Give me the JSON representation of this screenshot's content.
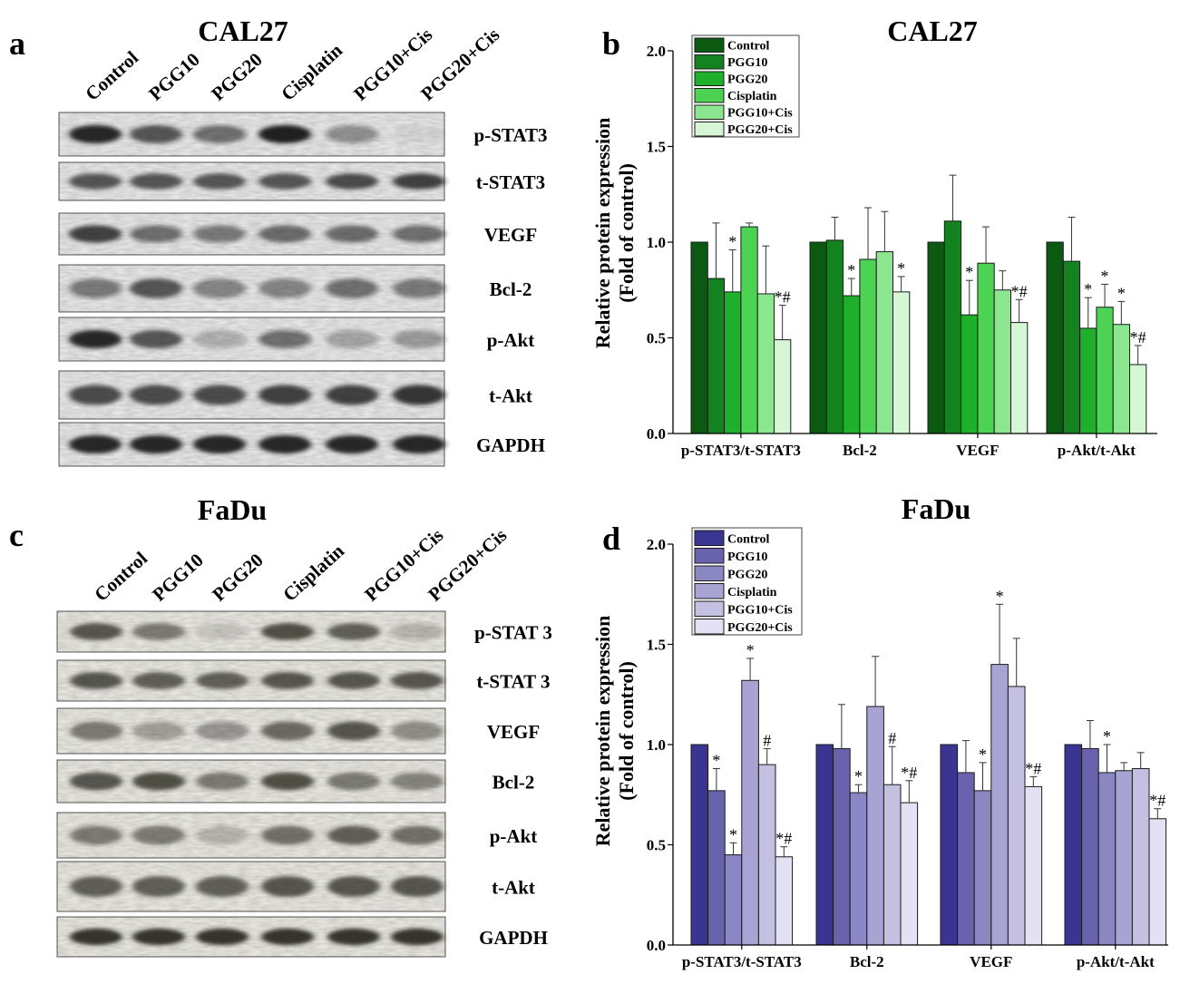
{
  "panels": {
    "a": {
      "letter": "a",
      "title": "CAL27",
      "lanes": [
        "Control",
        "PGG10",
        "PGG20",
        "Cisplatin",
        "PGG10+Cis",
        "PGG20+Cis"
      ],
      "blots": [
        "p-STAT3",
        "t-STAT3",
        "VEGF",
        "Bcl-2",
        "p-Akt",
        "t-Akt",
        "GAPDH"
      ]
    },
    "c": {
      "letter": "c",
      "title": "FaDu",
      "lanes": [
        "Control",
        "PGG10",
        "PGG20",
        "Cisplatin",
        "PGG10+Cis",
        "PGG20+Cis"
      ],
      "blots": [
        "p-STAT 3",
        "t-STAT 3",
        "VEGF",
        "Bcl-2",
        "p-Akt",
        "t-Akt",
        "GAPDH"
      ]
    }
  },
  "chart_data": [
    {
      "panel": "b",
      "type": "bar",
      "title": "CAL27",
      "ylabel": "Relative protein expression (Fold of control)",
      "ylabel_lines": [
        "Relative protein expression",
        "(Fold of control)"
      ],
      "ylim": [
        0.0,
        2.0
      ],
      "yticks": [
        "0.0",
        "0.5",
        "1.0",
        "1.5",
        "2.0"
      ],
      "legend_position": "top-left",
      "categories": [
        "p-STAT3/t-STAT3",
        "Bcl-2",
        "VEGF",
        "p-Akt/t-Akt"
      ],
      "series": [
        {
          "name": "Control",
          "color": "#0c5a12",
          "values": [
            1.0,
            1.0,
            1.0,
            1.0
          ],
          "errors": [
            0.0,
            0.0,
            0.0,
            0.0
          ],
          "labels": [
            "",
            "",
            "",
            ""
          ]
        },
        {
          "name": "PGG10",
          "color": "#14821e",
          "values": [
            0.81,
            1.01,
            1.11,
            0.9
          ],
          "errors": [
            0.29,
            0.12,
            0.24,
            0.23
          ],
          "labels": [
            "",
            "",
            "",
            ""
          ]
        },
        {
          "name": "PGG20",
          "color": "#1fb02b",
          "values": [
            0.74,
            0.72,
            0.62,
            0.55
          ],
          "errors": [
            0.22,
            0.09,
            0.18,
            0.16
          ],
          "labels": [
            "*",
            "*",
            "*",
            "*"
          ]
        },
        {
          "name": "Cisplatin",
          "color": "#4cd353",
          "values": [
            1.08,
            0.91,
            0.89,
            0.66
          ],
          "errors": [
            0.02,
            0.27,
            0.19,
            0.12
          ],
          "labels": [
            "",
            "",
            "",
            "*"
          ]
        },
        {
          "name": "PGG10+Cis",
          "color": "#8ce68f",
          "values": [
            0.73,
            0.95,
            0.75,
            0.57
          ],
          "errors": [
            0.25,
            0.21,
            0.1,
            0.12
          ],
          "labels": [
            "",
            "",
            "",
            "*"
          ]
        },
        {
          "name": "PGG20+Cis",
          "color": "#d6f7d6",
          "values": [
            0.49,
            0.74,
            0.58,
            0.36
          ],
          "errors": [
            0.18,
            0.08,
            0.12,
            0.1
          ],
          "labels": [
            "*#",
            "*",
            "*#",
            "*#"
          ]
        }
      ]
    },
    {
      "panel": "d",
      "type": "bar",
      "title": "FaDu",
      "ylabel": "Relative protein expression (Fold of control)",
      "ylabel_lines": [
        "Relative protein expression",
        "(Fold of control)"
      ],
      "ylim": [
        0.0,
        2.0
      ],
      "yticks": [
        "0.0",
        "0.5",
        "1.0",
        "1.5",
        "2.0"
      ],
      "legend_position": "top-left",
      "categories": [
        "p-STAT3/t-STAT3",
        "Bcl-2",
        "VEGF",
        "p-Akt/t-Akt"
      ],
      "series": [
        {
          "name": "Control",
          "color": "#3a3590",
          "values": [
            1.0,
            1.0,
            1.0,
            1.0
          ],
          "errors": [
            0.0,
            0.0,
            0.0,
            0.0
          ],
          "labels": [
            "",
            "",
            "",
            ""
          ]
        },
        {
          "name": "PGG10",
          "color": "#6963ad",
          "values": [
            0.77,
            0.98,
            0.86,
            0.98
          ],
          "errors": [
            0.11,
            0.22,
            0.16,
            0.14
          ],
          "labels": [
            "*",
            "",
            "",
            ""
          ]
        },
        {
          "name": "PGG20",
          "color": "#8b87c2",
          "values": [
            0.45,
            0.76,
            0.77,
            0.86
          ],
          "errors": [
            0.06,
            0.04,
            0.14,
            0.14
          ],
          "labels": [
            "*",
            "*",
            "*",
            "*"
          ]
        },
        {
          "name": "Cisplatin",
          "color": "#a7a3d2",
          "values": [
            1.32,
            1.19,
            1.4,
            0.87
          ],
          "errors": [
            0.11,
            0.25,
            0.3,
            0.04
          ],
          "labels": [
            "*",
            "",
            "*",
            ""
          ]
        },
        {
          "name": "PGG10+Cis",
          "color": "#c3c0e2",
          "values": [
            0.9,
            0.8,
            1.29,
            0.88
          ],
          "errors": [
            0.08,
            0.19,
            0.24,
            0.08
          ],
          "labels": [
            "#",
            "#",
            "",
            ""
          ]
        },
        {
          "name": "PGG20+Cis",
          "color": "#e3e1f3",
          "values": [
            0.44,
            0.71,
            0.79,
            0.63
          ],
          "errors": [
            0.05,
            0.11,
            0.05,
            0.05
          ],
          "labels": [
            "*#",
            "*#",
            "*#",
            "*#"
          ]
        }
      ]
    }
  ]
}
